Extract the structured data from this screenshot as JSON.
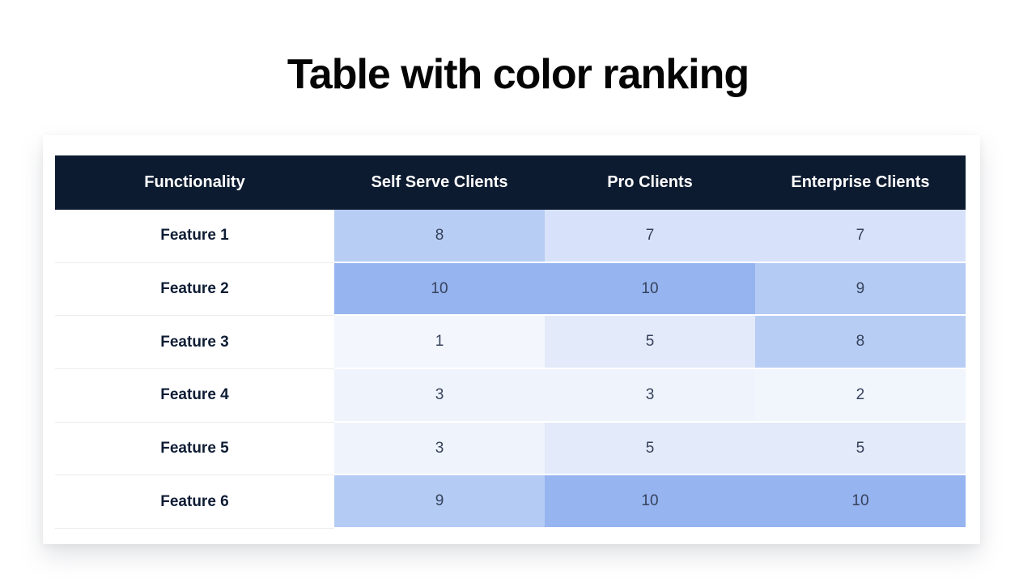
{
  "title": "Table with color ranking",
  "table": {
    "columns": [
      "Functionality",
      "Self Serve Clients",
      "Pro Clients",
      "Enterprise Clients"
    ],
    "rows": [
      {
        "label": "Feature 1",
        "values": [
          8,
          7,
          7
        ]
      },
      {
        "label": "Feature 2",
        "values": [
          10,
          10,
          9
        ]
      },
      {
        "label": "Feature 3",
        "values": [
          1,
          5,
          8
        ]
      },
      {
        "label": "Feature 4",
        "values": [
          3,
          3,
          2
        ]
      },
      {
        "label": "Feature 5",
        "values": [
          3,
          5,
          5
        ]
      },
      {
        "label": "Feature 6",
        "values": [
          9,
          10,
          10
        ]
      }
    ]
  },
  "colors": {
    "header_bg": "#0d1b30",
    "header_text": "#ffffff",
    "label_text": "#0e1c34",
    "value_text": "#36425c",
    "row_divider": "#ececec",
    "value_scale": {
      "1": "#f3f6fd",
      "2": "#f1f5fc",
      "3": "#eff3fb",
      "5": "#e3eaf9",
      "7": "#d7e2fa",
      "8": "#b7cdf4",
      "9": "#b4ccf4",
      "10": "#95b4f0"
    }
  },
  "chart_data": {
    "type": "table",
    "title": "Table with color ranking",
    "columns": [
      "Functionality",
      "Self Serve Clients",
      "Pro Clients",
      "Enterprise Clients"
    ],
    "rows": [
      [
        "Feature 1",
        8,
        7,
        7
      ],
      [
        "Feature 2",
        10,
        10,
        9
      ],
      [
        "Feature 3",
        1,
        5,
        8
      ],
      [
        "Feature 4",
        3,
        3,
        2
      ],
      [
        "Feature 5",
        3,
        5,
        5
      ],
      [
        "Feature 6",
        9,
        10,
        10
      ]
    ],
    "value_range": [
      1,
      10
    ],
    "color_encoding": "cell background blue intensity increases with value (1 = lightest, 10 = darkest)"
  }
}
